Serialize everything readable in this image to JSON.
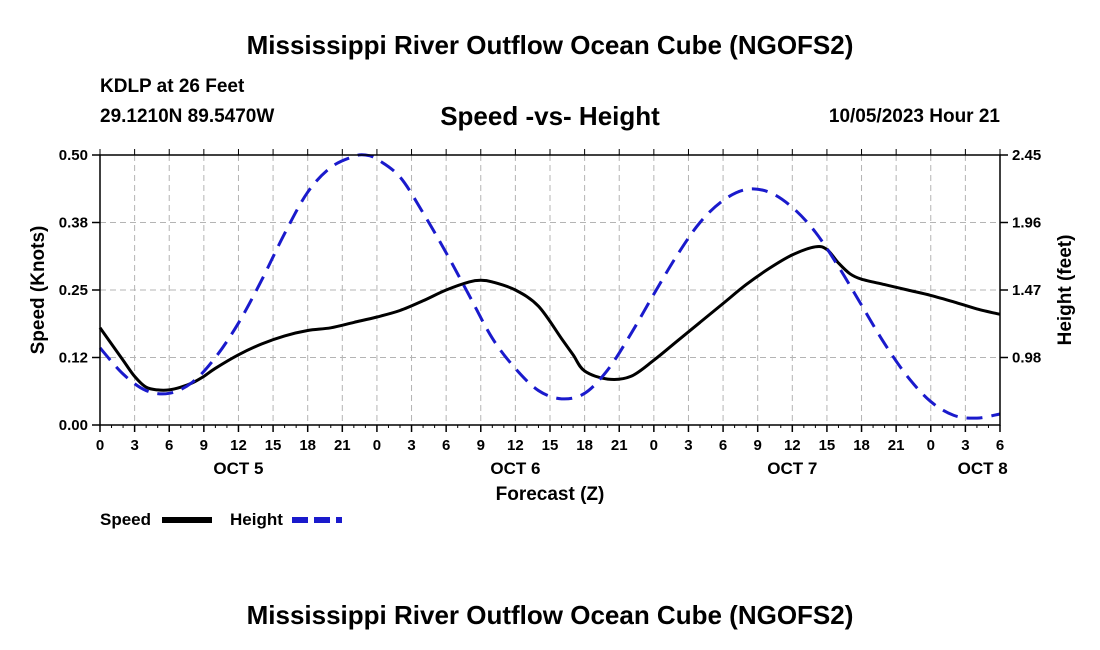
{
  "header": {
    "title": "Mississippi River Outflow Ocean Cube (NGOFS2)",
    "station": "KDLP at 26 Feet",
    "coordinates": "29.1210N  89.5470W",
    "subtitle": "Speed -vs- Height",
    "datetime": "10/05/2023 Hour 21"
  },
  "footer": {
    "title": "Mississippi River Outflow Ocean Cube (NGOFS2)"
  },
  "colors": {
    "speed": "#000000",
    "height": "#1a1acc",
    "grid": "#b4b4b4"
  },
  "chart_data": {
    "type": "line",
    "title": "Speed -vs- Height",
    "xlabel": "Forecast (Z)",
    "ylabel": "Speed (Knots)",
    "y2label": "Height (feet)",
    "xlim": [
      0,
      78
    ],
    "ylim": [
      0,
      0.5
    ],
    "y2lim": [
      0.49,
      2.45
    ],
    "x_ticks": [
      0,
      3,
      6,
      9,
      12,
      15,
      18,
      21,
      24,
      27,
      30,
      33,
      36,
      39,
      42,
      45,
      48,
      51,
      54,
      57,
      60,
      63,
      66,
      69,
      72,
      75,
      78
    ],
    "x_tick_labels": [
      "0",
      "3",
      "6",
      "9",
      "12",
      "15",
      "18",
      "21",
      "0",
      "3",
      "6",
      "9",
      "12",
      "15",
      "18",
      "21",
      "0",
      "3",
      "6",
      "9",
      "12",
      "15",
      "18",
      "21",
      "0",
      "3",
      "6"
    ],
    "y_tick_labels": [
      "0.00",
      "0.12",
      "0.25",
      "0.38",
      "0.50"
    ],
    "y2_tick_labels": [
      "0.98",
      "1.47",
      "1.96",
      "2.45"
    ],
    "day_labels": [
      {
        "label": "OCT 5",
        "x": 12
      },
      {
        "label": "OCT 6",
        "x": 36
      },
      {
        "label": "OCT 7",
        "x": 60
      },
      {
        "label": "OCT 8",
        "x": 76.5
      }
    ],
    "grid": true,
    "legend": "bottom-left",
    "series": [
      {
        "name": "Speed",
        "axis": "left",
        "style": "solid",
        "x": [
          0,
          1,
          2,
          3,
          4,
          5,
          6,
          7,
          8,
          9,
          10,
          12,
          14,
          16,
          18,
          20,
          22,
          24,
          26,
          28,
          30,
          32,
          33,
          34,
          36,
          38,
          40,
          41,
          42,
          44,
          46,
          48,
          50,
          52,
          54,
          56,
          58,
          60,
          62,
          63,
          64,
          65,
          66,
          68,
          70,
          72,
          74,
          76,
          78
        ],
        "values": [
          0.18,
          0.15,
          0.12,
          0.09,
          0.07,
          0.065,
          0.065,
          0.07,
          0.078,
          0.09,
          0.105,
          0.13,
          0.15,
          0.165,
          0.175,
          0.18,
          0.19,
          0.2,
          0.212,
          0.23,
          0.25,
          0.265,
          0.268,
          0.265,
          0.25,
          0.22,
          0.16,
          0.13,
          0.1,
          0.085,
          0.09,
          0.12,
          0.155,
          0.19,
          0.225,
          0.26,
          0.29,
          0.315,
          0.33,
          0.325,
          0.3,
          0.28,
          0.27,
          0.26,
          0.25,
          0.24,
          0.228,
          0.215,
          0.205
        ]
      },
      {
        "name": "Height",
        "axis": "right",
        "style": "dashed",
        "x": [
          0,
          2,
          4,
          6,
          8,
          10,
          12,
          14,
          16,
          18,
          20,
          22,
          23,
          24,
          26,
          28,
          30,
          32,
          34,
          36,
          38,
          40,
          42,
          44,
          46,
          48,
          50,
          52,
          54,
          56,
          58,
          60,
          62,
          64,
          66,
          68,
          70,
          72,
          74,
          76,
          78
        ],
        "values": [
          1.05,
          0.86,
          0.74,
          0.72,
          0.8,
          0.98,
          1.23,
          1.54,
          1.88,
          2.18,
          2.36,
          2.44,
          2.45,
          2.42,
          2.29,
          2.03,
          1.74,
          1.43,
          1.12,
          0.9,
          0.74,
          0.68,
          0.72,
          0.89,
          1.15,
          1.44,
          1.72,
          1.96,
          2.12,
          2.2,
          2.18,
          2.07,
          1.89,
          1.64,
          1.36,
          1.08,
          0.84,
          0.66,
          0.56,
          0.54,
          0.57
        ]
      }
    ]
  }
}
